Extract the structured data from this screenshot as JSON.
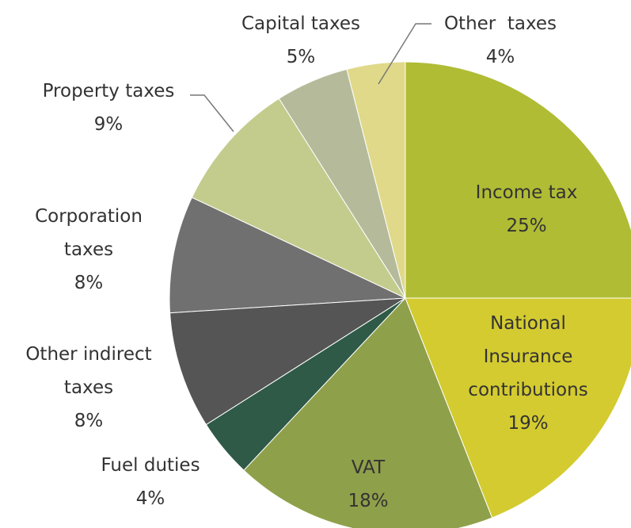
{
  "chart_data": {
    "type": "pie",
    "categories": [
      "Income tax",
      "National Insurance contributions",
      "VAT",
      "Fuel duties",
      "Other indirect taxes",
      "Corporation taxes",
      "Property taxes",
      "Capital taxes",
      "Other  taxes"
    ],
    "values": [
      25,
      19,
      18,
      4,
      8,
      8,
      9,
      5,
      4
    ],
    "value_labels": [
      "25%",
      "19%",
      "18%",
      "4%",
      "8%",
      "8%",
      "9%",
      "5%",
      "4%"
    ],
    "colors": [
      "#b0bc34",
      "#d4cb30",
      "#8fa04a",
      "#2e5a47",
      "#555555",
      "#707070",
      "#c3cc8c",
      "#b5bb9a",
      "#e0d98a"
    ]
  }
}
